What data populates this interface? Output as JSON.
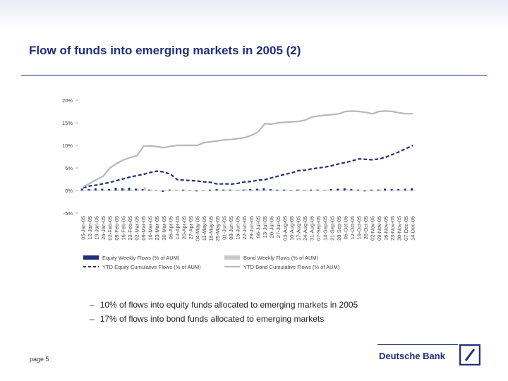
{
  "slide": {
    "title": "Flow of funds into emerging markets in 2005 (2)",
    "bullets": [
      "10% of flows into equity funds allocated to emerging markets in 2005",
      "17% of flows into bond funds allocated to emerging markets"
    ],
    "bullet_marker": "–",
    "page_label": "page 5",
    "brand": "Deutsche Bank",
    "accent_color": "#1f2f7a"
  },
  "chart_data": {
    "type": "bar",
    "title": "",
    "xlabel": "",
    "ylabel": "",
    "ylim": [
      -0.05,
      0.2
    ],
    "yticks": [
      -0.05,
      0,
      0.05,
      0.1,
      0.15,
      0.2
    ],
    "ytick_labels": [
      "-5%",
      "0%",
      "5%",
      "10%",
      "15%",
      "20%"
    ],
    "legend_position": "bottom",
    "categories": [
      "05-Jan-05",
      "12-Jan-05",
      "19-Jan-05",
      "26-Jan-05",
      "02-Feb-05",
      "09-Feb-05",
      "16-Feb-05",
      "23-Feb-05",
      "02-Mar-05",
      "09-Mar-05",
      "16-Mar-05",
      "23-Mar-05",
      "30-Mar-05",
      "06-Apr-05",
      "13-Apr-05",
      "20-Apr-05",
      "27-Apr-05",
      "04-May-05",
      "11-May-05",
      "18-May-05",
      "25-May-05",
      "01-Jun-05",
      "08-Jun-05",
      "15-Jun-05",
      "22-Jun-05",
      "29-Jun-05",
      "06-Jul-05",
      "13-Jul-05",
      "20-Jul-05",
      "27-Jul-05",
      "03-Aug-05",
      "10-Aug-05",
      "17-Aug-05",
      "24-Aug-05",
      "31-Aug-05",
      "07-Sep-05",
      "14-Sep-05",
      "21-Sep-05",
      "28-Sep-05",
      "05-Oct-05",
      "12-Oct-05",
      "19-Oct-05",
      "26-Oct-05",
      "02-Nov-05",
      "09-Nov-05",
      "16-Nov-05",
      "23-Nov-05",
      "30-Nov-05",
      "07-Dec-05",
      "14-Dec-05"
    ],
    "series": [
      {
        "name": "Equity Weekly Flows (% of AUM)",
        "type": "bar",
        "color": "#1f2f7a",
        "values": [
          0.004,
          0.003,
          0.005,
          0.004,
          0.003,
          0.006,
          0.005,
          0.006,
          0.004,
          0.003,
          0.002,
          0.001,
          -0.003,
          0.002,
          0.001,
          0.002,
          0.001,
          -0.002,
          -0.001,
          0.002,
          0.003,
          0.002,
          0.002,
          0.001,
          0.002,
          0.003,
          0.004,
          0.005,
          0.003,
          0.002,
          0.002,
          0.001,
          0.002,
          0.001,
          0.002,
          0.002,
          0.001,
          0.003,
          0.004,
          0.005,
          0.003,
          0.002,
          -0.002,
          0.002,
          0.002,
          0.004,
          0.003,
          0.003,
          0.004,
          0.005
        ]
      },
      {
        "name": "Bond Weekly Flows (% of AUM)",
        "type": "bar",
        "color": "#c8c8c8",
        "values": [
          0.001,
          0.003,
          0.002,
          0.001,
          0.002,
          0.002,
          0.003,
          0.002,
          0.004,
          0.008,
          0.002,
          0.001,
          0.002,
          0.001,
          0.001,
          0.002,
          -0.001,
          0.001,
          0.001,
          0.001,
          0.002,
          0.002,
          0.001,
          0.002,
          0.003,
          0.002,
          0.003,
          0.002,
          0.002,
          0.001,
          0.002,
          0.001,
          0.002,
          0.002,
          0.001,
          0.001,
          0.002,
          0.001,
          0.002,
          0.003,
          0.002,
          0.001,
          0.001,
          0.001,
          0.002,
          0.001,
          0.001,
          0.001,
          0.001,
          0.001
        ]
      },
      {
        "name": "YTD Equity Cumulative Flows (% of AUM)",
        "type": "line",
        "style": "dashed",
        "color": "#1f2f7a",
        "values": [
          0.006,
          0.01,
          0.012,
          0.015,
          0.018,
          0.022,
          0.026,
          0.03,
          0.033,
          0.036,
          0.04,
          0.043,
          0.041,
          0.036,
          0.024,
          0.023,
          0.022,
          0.021,
          0.019,
          0.018,
          0.014,
          0.015,
          0.014,
          0.016,
          0.019,
          0.02,
          0.023,
          0.024,
          0.028,
          0.032,
          0.036,
          0.039,
          0.044,
          0.045,
          0.048,
          0.05,
          0.052,
          0.055,
          0.059,
          0.062,
          0.066,
          0.07,
          0.069,
          0.068,
          0.07,
          0.074,
          0.08,
          0.086,
          0.093,
          0.1
        ]
      },
      {
        "name": "YTD Bond Cumulative Flows (% of AUM)",
        "type": "line",
        "style": "solid",
        "color": "#b8b8b8",
        "values": [
          0.008,
          0.016,
          0.024,
          0.032,
          0.05,
          0.06,
          0.068,
          0.073,
          0.077,
          0.098,
          0.099,
          0.097,
          0.095,
          0.098,
          0.1,
          0.1,
          0.1,
          0.1,
          0.106,
          0.108,
          0.11,
          0.112,
          0.113,
          0.115,
          0.117,
          0.122,
          0.13,
          0.148,
          0.147,
          0.15,
          0.151,
          0.152,
          0.153,
          0.156,
          0.163,
          0.165,
          0.167,
          0.168,
          0.17,
          0.175,
          0.176,
          0.175,
          0.173,
          0.17,
          0.175,
          0.176,
          0.175,
          0.172,
          0.17,
          0.17
        ]
      }
    ]
  }
}
